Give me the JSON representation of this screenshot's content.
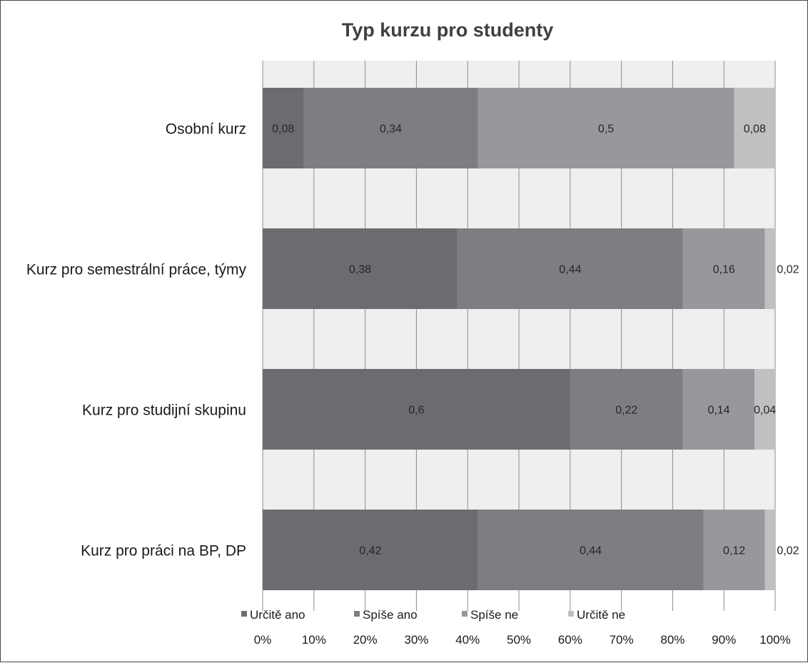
{
  "chart_data": {
    "type": "bar",
    "orientation": "horizontal",
    "stacking": "percent",
    "title": "Typ kurzu pro studenty",
    "categories": [
      "Osobní kurz",
      "Kurz pro semestrální práce, týmy",
      "Kurz pro studijní skupinu",
      "Kurz pro práci na BP, DP"
    ],
    "series": [
      {
        "name": "Určitě ano",
        "color": "#6b6c6f",
        "values": [
          0.08,
          0.38,
          0.6,
          0.42
        ]
      },
      {
        "name": "Spíše ano",
        "color": "#7d7e81",
        "values": [
          0.34,
          0.44,
          0.22,
          0.44
        ]
      },
      {
        "name": "Spíše ne",
        "color": "#97989b",
        "values": [
          0.5,
          0.16,
          0.14,
          0.12
        ]
      },
      {
        "name": "Určitě ne",
        "color": "#bfc0c2",
        "values": [
          0.08,
          0.02,
          0.04,
          0.02
        ]
      }
    ],
    "data_labels": [
      [
        "0,08",
        "0,34",
        "0,5",
        "0,08"
      ],
      [
        "0,38",
        "0,44",
        "0,16",
        "0,02"
      ],
      [
        "0,6",
        "0,22",
        "0,14",
        "0,04"
      ],
      [
        "0,42",
        "0,44",
        "0,12",
        "0,02"
      ]
    ],
    "x_ticks": [
      "0%",
      "10%",
      "20%",
      "30%",
      "40%",
      "50%",
      "60%",
      "70%",
      "80%",
      "90%",
      "100%"
    ],
    "xlim": [
      0,
      1
    ],
    "grid": true,
    "plot_background": "#efefef",
    "gridline_color": "#8c8c8c",
    "legend_position": "bottom"
  }
}
